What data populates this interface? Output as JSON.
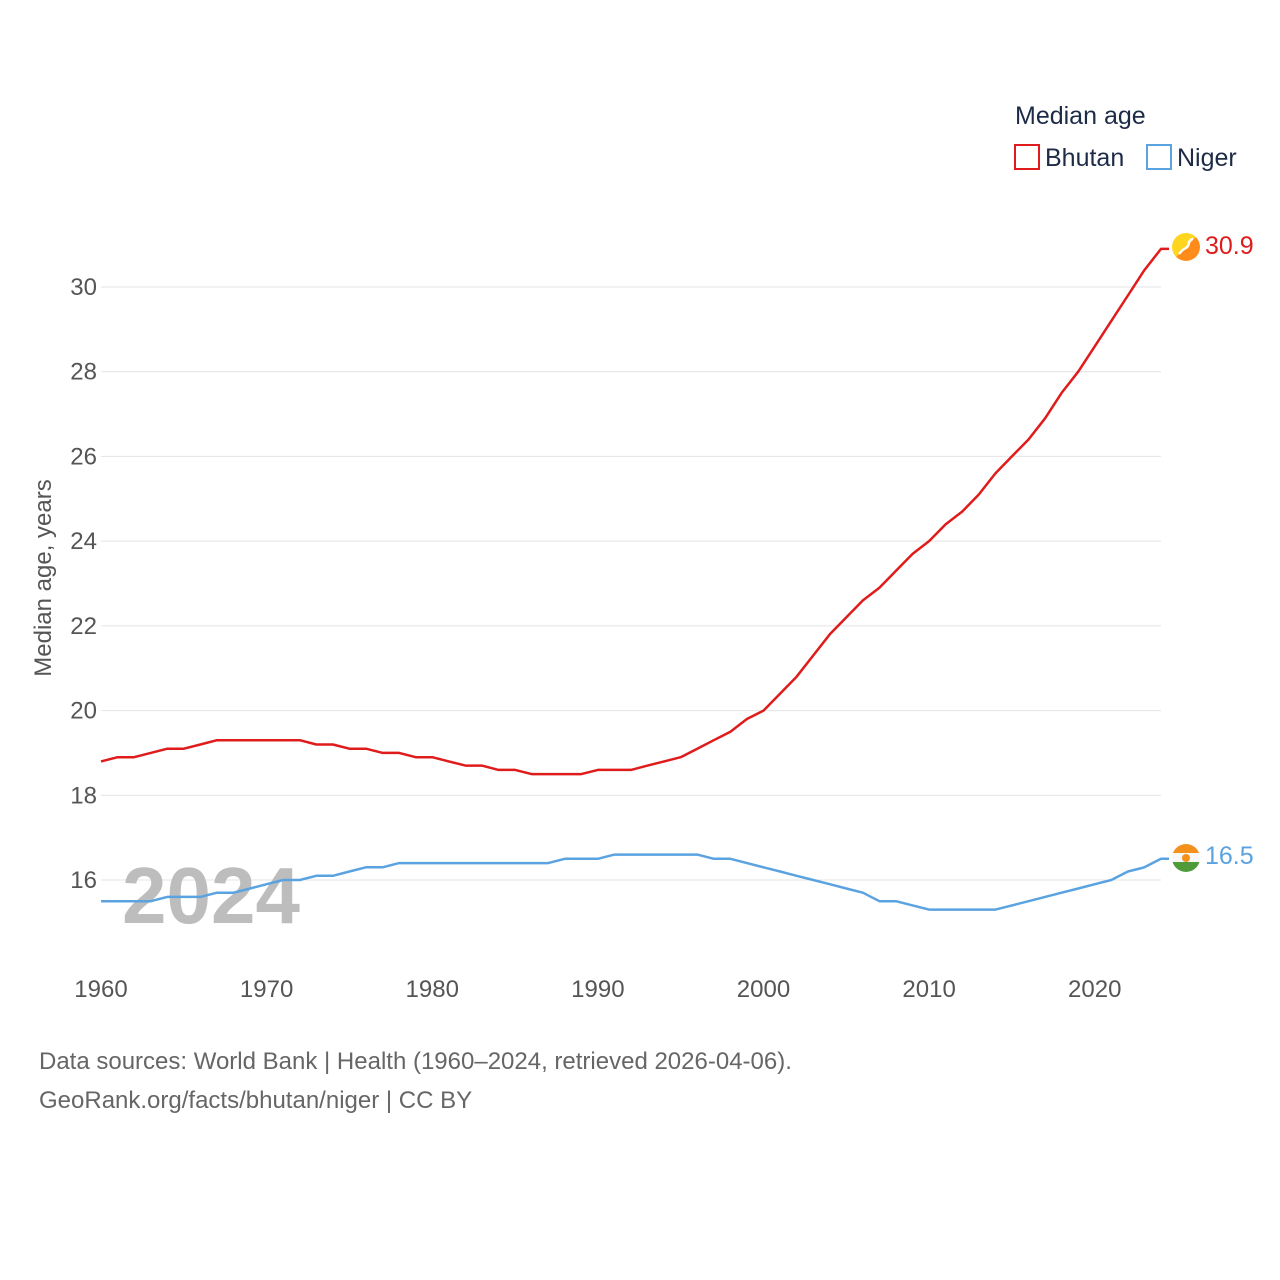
{
  "chart_data": {
    "type": "line",
    "legend_title": "Median age",
    "ylabel": "Median age, years",
    "xlabel": "",
    "xlim": [
      1960,
      2024
    ],
    "ylim": [
      14.2,
      31.5
    ],
    "y_ticks": [
      16,
      18,
      20,
      22,
      24,
      26,
      28,
      30
    ],
    "x_ticks": [
      1960,
      1970,
      1980,
      1990,
      2000,
      2010,
      2020
    ],
    "year_watermark": "2024",
    "x": [
      1960,
      1961,
      1962,
      1963,
      1964,
      1965,
      1966,
      1967,
      1968,
      1969,
      1970,
      1971,
      1972,
      1973,
      1974,
      1975,
      1976,
      1977,
      1978,
      1979,
      1980,
      1981,
      1982,
      1983,
      1984,
      1985,
      1986,
      1987,
      1988,
      1989,
      1990,
      1991,
      1992,
      1993,
      1994,
      1995,
      1996,
      1997,
      1998,
      1999,
      2000,
      2001,
      2002,
      2003,
      2004,
      2005,
      2006,
      2007,
      2008,
      2009,
      2010,
      2011,
      2012,
      2013,
      2014,
      2015,
      2016,
      2017,
      2018,
      2019,
      2020,
      2021,
      2022,
      2023,
      2024
    ],
    "series": [
      {
        "name": "Bhutan",
        "color": "#e01b1b",
        "end_label": "30.9",
        "flag_icon": "bhutan-flag-icon",
        "values": [
          18.8,
          18.9,
          18.9,
          19.0,
          19.1,
          19.1,
          19.2,
          19.3,
          19.3,
          19.3,
          19.3,
          19.3,
          19.3,
          19.2,
          19.2,
          19.1,
          19.1,
          19.0,
          19.0,
          18.9,
          18.9,
          18.8,
          18.7,
          18.7,
          18.6,
          18.6,
          18.5,
          18.5,
          18.5,
          18.5,
          18.6,
          18.6,
          18.6,
          18.7,
          18.8,
          18.9,
          19.1,
          19.3,
          19.5,
          19.8,
          20.0,
          20.4,
          20.8,
          21.3,
          21.8,
          22.2,
          22.6,
          22.9,
          23.3,
          23.7,
          24.0,
          24.4,
          24.7,
          25.1,
          25.6,
          26.0,
          26.4,
          26.9,
          27.5,
          28.0,
          28.6,
          29.2,
          29.8,
          30.4,
          30.9
        ]
      },
      {
        "name": "Niger",
        "color": "#5ba3e0",
        "end_label": "16.5",
        "flag_icon": "niger-flag-icon",
        "values": [
          15.5,
          15.5,
          15.5,
          15.5,
          15.6,
          15.6,
          15.6,
          15.7,
          15.7,
          15.8,
          15.9,
          16.0,
          16.0,
          16.1,
          16.1,
          16.2,
          16.3,
          16.3,
          16.4,
          16.4,
          16.4,
          16.4,
          16.4,
          16.4,
          16.4,
          16.4,
          16.4,
          16.4,
          16.5,
          16.5,
          16.5,
          16.6,
          16.6,
          16.6,
          16.6,
          16.6,
          16.6,
          16.5,
          16.5,
          16.4,
          16.3,
          16.2,
          16.1,
          16.0,
          15.9,
          15.8,
          15.7,
          15.5,
          15.5,
          15.4,
          15.3,
          15.3,
          15.3,
          15.3,
          15.3,
          15.4,
          15.5,
          15.6,
          15.7,
          15.8,
          15.9,
          16.0,
          16.2,
          16.3,
          16.5
        ]
      }
    ]
  },
  "footer": {
    "line1": "Data sources: World Bank | Health (1960–2024, retrieved 2026-04-06).",
    "line2": "GeoRank.org/facts/bhutan/niger | CC BY"
  }
}
